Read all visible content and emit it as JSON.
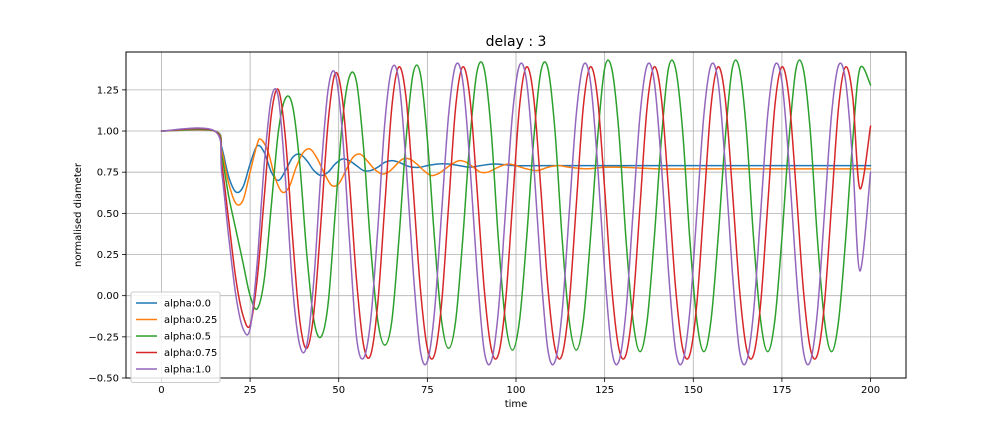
{
  "chart_data": {
    "type": "line",
    "title": "delay : 3",
    "xlabel": "time",
    "ylabel": "normalised diameter",
    "xlim": [
      -10,
      210
    ],
    "ylim": [
      -0.5,
      1.48
    ],
    "xticks": [
      0,
      25,
      50,
      75,
      100,
      125,
      150,
      175,
      200
    ],
    "xtick_labels": [
      "0",
      "25",
      "50",
      "75",
      "100",
      "125",
      "150",
      "175",
      "200"
    ],
    "yticks": [
      -0.5,
      -0.25,
      0.0,
      0.25,
      0.5,
      0.75,
      1.0,
      1.25
    ],
    "ytick_labels": [
      "−0.50",
      "−0.25",
      "0.00",
      "0.25",
      "0.50",
      "0.75",
      "1.00",
      "1.25"
    ],
    "grid": true,
    "legend_position": "lower-left",
    "series": [
      {
        "name": "alpha:0.0",
        "color": "#1f77b4",
        "x": [
          0,
          15,
          17,
          19,
          21,
          23,
          25,
          27,
          29,
          31,
          33,
          35,
          37,
          39,
          41,
          43,
          45,
          47,
          49,
          51,
          53,
          55,
          57,
          59,
          61,
          63,
          65,
          67,
          69,
          71,
          73,
          75,
          78,
          81,
          84,
          87,
          90,
          94,
          100,
          110,
          200
        ],
        "y": [
          1.0,
          1.0,
          0.9,
          0.72,
          0.63,
          0.66,
          0.8,
          0.91,
          0.87,
          0.75,
          0.7,
          0.76,
          0.84,
          0.86,
          0.82,
          0.76,
          0.73,
          0.75,
          0.8,
          0.83,
          0.82,
          0.79,
          0.76,
          0.76,
          0.78,
          0.81,
          0.82,
          0.81,
          0.79,
          0.78,
          0.78,
          0.79,
          0.8,
          0.8,
          0.79,
          0.78,
          0.79,
          0.8,
          0.79,
          0.79,
          0.79
        ]
      },
      {
        "name": "alpha:0.25",
        "color": "#ff7f0e",
        "x": [
          0,
          15,
          17,
          19,
          21,
          23,
          25,
          27,
          28,
          30,
          32,
          34,
          36,
          38,
          40,
          42,
          44,
          46,
          48,
          50,
          52,
          54,
          56,
          58,
          60,
          62,
          64,
          66,
          68,
          70,
          72,
          74,
          76,
          78,
          80,
          82,
          84,
          86,
          88,
          90,
          92,
          94,
          96,
          98,
          100,
          103,
          106,
          109,
          112,
          115,
          120,
          125,
          130,
          140,
          150,
          160,
          170,
          180,
          200
        ],
        "y": [
          1.0,
          1.0,
          0.88,
          0.68,
          0.56,
          0.58,
          0.75,
          0.92,
          0.95,
          0.88,
          0.72,
          0.63,
          0.66,
          0.78,
          0.87,
          0.89,
          0.83,
          0.74,
          0.67,
          0.68,
          0.76,
          0.84,
          0.86,
          0.82,
          0.77,
          0.74,
          0.75,
          0.79,
          0.83,
          0.83,
          0.8,
          0.76,
          0.73,
          0.74,
          0.77,
          0.8,
          0.82,
          0.81,
          0.78,
          0.75,
          0.75,
          0.77,
          0.79,
          0.8,
          0.79,
          0.77,
          0.76,
          0.78,
          0.79,
          0.78,
          0.77,
          0.78,
          0.78,
          0.77,
          0.77,
          0.77,
          0.77,
          0.77,
          0.77
        ]
      },
      {
        "name": "alpha:0.5",
        "color": "#2ca02c",
        "x": [
          0,
          15,
          17,
          19,
          21,
          23,
          25,
          27,
          29,
          31,
          33,
          35,
          37,
          39,
          41,
          43,
          45,
          47,
          49,
          51,
          53,
          55,
          57,
          59,
          61,
          63,
          65,
          67,
          69,
          71,
          73,
          75,
          77,
          79,
          81,
          83,
          85,
          87,
          89,
          91,
          93,
          95,
          97,
          99,
          101,
          103,
          105,
          107,
          109,
          111,
          113,
          115,
          117,
          119,
          121,
          123,
          125,
          127,
          129,
          131,
          133,
          135,
          137,
          139,
          141,
          143,
          145,
          147,
          149,
          151,
          153,
          155,
          157,
          159,
          161,
          163,
          165,
          167,
          169,
          171,
          173,
          175,
          177,
          179,
          181,
          183,
          185,
          187,
          189,
          191,
          193,
          195,
          197,
          200
        ],
        "y": [
          1.0,
          1.0,
          0.85,
          0.6,
          0.4,
          0.2,
          0.0,
          -0.08,
          0.1,
          0.55,
          1.0,
          1.2,
          1.15,
          0.8,
          0.25,
          -0.15,
          -0.25,
          -0.05,
          0.5,
          1.05,
          1.33,
          1.3,
          0.9,
          0.3,
          -0.15,
          -0.3,
          -0.15,
          0.35,
          0.95,
          1.35,
          1.35,
          0.95,
          0.35,
          -0.15,
          -0.32,
          -0.15,
          0.35,
          0.95,
          1.36,
          1.38,
          1.0,
          0.35,
          -0.15,
          -0.33,
          -0.15,
          0.35,
          0.95,
          1.36,
          1.38,
          1.0,
          0.35,
          -0.15,
          -0.33,
          -0.15,
          0.35,
          0.95,
          1.38,
          1.38,
          1.0,
          0.35,
          -0.15,
          -0.34,
          -0.15,
          0.35,
          0.95,
          1.38,
          1.38,
          1.0,
          0.35,
          -0.15,
          -0.34,
          -0.15,
          0.35,
          0.95,
          1.38,
          1.38,
          1.0,
          0.35,
          -0.15,
          -0.34,
          -0.15,
          0.35,
          0.95,
          1.38,
          1.38,
          1.0,
          0.35,
          -0.15,
          -0.34,
          -0.15,
          0.35,
          0.95,
          1.38,
          1.28
        ]
      },
      {
        "name": "alpha:0.75",
        "color": "#d62728",
        "x": [
          0,
          15,
          17,
          19,
          21,
          23,
          25,
          27,
          29,
          31,
          33,
          35,
          37,
          39,
          41,
          43,
          45,
          47,
          49,
          51,
          53,
          55,
          57,
          59,
          61,
          63,
          65,
          67,
          69,
          71,
          73,
          75,
          77,
          79,
          81,
          83,
          85,
          87,
          89,
          91,
          93,
          95,
          97,
          99,
          101,
          103,
          105,
          107,
          109,
          111,
          113,
          115,
          117,
          119,
          121,
          123,
          125,
          127,
          129,
          131,
          133,
          135,
          137,
          139,
          141,
          143,
          145,
          147,
          149,
          151,
          153,
          155,
          157,
          159,
          161,
          163,
          165,
          167,
          169,
          171,
          173,
          175,
          177,
          179,
          181,
          183,
          185,
          187,
          189,
          191,
          193,
          195,
          197,
          200
        ],
        "y": [
          1.0,
          1.0,
          0.8,
          0.45,
          0.1,
          -0.12,
          -0.18,
          0.1,
          0.6,
          1.1,
          1.25,
          0.95,
          0.35,
          -0.15,
          -0.32,
          -0.1,
          0.45,
          1.05,
          1.35,
          1.2,
          0.7,
          0.1,
          -0.3,
          -0.36,
          -0.05,
          0.55,
          1.15,
          1.39,
          1.2,
          0.65,
          0.05,
          -0.32,
          -0.36,
          -0.05,
          0.55,
          1.15,
          1.39,
          1.2,
          0.65,
          0.05,
          -0.32,
          -0.36,
          -0.05,
          0.55,
          1.15,
          1.39,
          1.2,
          0.65,
          0.05,
          -0.32,
          -0.36,
          -0.05,
          0.55,
          1.15,
          1.39,
          1.2,
          0.65,
          0.05,
          -0.32,
          -0.36,
          -0.05,
          0.55,
          1.15,
          1.39,
          1.2,
          0.65,
          0.05,
          -0.32,
          -0.36,
          -0.05,
          0.55,
          1.15,
          1.39,
          1.2,
          0.65,
          0.05,
          -0.32,
          -0.36,
          -0.05,
          0.55,
          1.15,
          1.39,
          1.2,
          0.65,
          0.05,
          -0.32,
          -0.36,
          -0.05,
          0.55,
          1.15,
          1.39,
          1.2,
          0.65,
          1.03
        ]
      },
      {
        "name": "alpha:1.0",
        "color": "#9467bd",
        "x": [
          0,
          15,
          17,
          19,
          21,
          23,
          25,
          27,
          29,
          31,
          33,
          35,
          37,
          39,
          41,
          43,
          45,
          47,
          49,
          51,
          53,
          55,
          57,
          59,
          61,
          63,
          65,
          67,
          69,
          71,
          73,
          75,
          77,
          79,
          81,
          83,
          85,
          87,
          89,
          91,
          93,
          95,
          97,
          99,
          101,
          103,
          105,
          107,
          109,
          111,
          113,
          115,
          117,
          119,
          121,
          123,
          125,
          127,
          129,
          131,
          133,
          135,
          137,
          139,
          141,
          143,
          145,
          147,
          149,
          151,
          153,
          155,
          157,
          159,
          161,
          163,
          165,
          167,
          169,
          171,
          173,
          175,
          177,
          179,
          181,
          183,
          185,
          187,
          189,
          191,
          193,
          195,
          197,
          200
        ],
        "y": [
          1.0,
          1.0,
          0.75,
          0.35,
          0.0,
          -0.2,
          -0.2,
          0.2,
          0.8,
          1.2,
          1.2,
          0.7,
          0.05,
          -0.3,
          -0.3,
          0.1,
          0.75,
          1.25,
          1.35,
          1.0,
          0.35,
          -0.25,
          -0.38,
          -0.15,
          0.4,
          1.05,
          1.38,
          1.3,
          0.8,
          0.15,
          -0.33,
          -0.4,
          -0.1,
          0.5,
          1.1,
          1.4,
          1.3,
          0.8,
          0.15,
          -0.33,
          -0.4,
          -0.1,
          0.5,
          1.1,
          1.4,
          1.3,
          0.8,
          0.15,
          -0.33,
          -0.4,
          -0.1,
          0.5,
          1.1,
          1.4,
          1.3,
          0.8,
          0.15,
          -0.33,
          -0.4,
          -0.1,
          0.5,
          1.1,
          1.4,
          1.3,
          0.8,
          0.15,
          -0.33,
          -0.4,
          -0.1,
          0.5,
          1.1,
          1.4,
          1.3,
          0.8,
          0.15,
          -0.33,
          -0.4,
          -0.1,
          0.5,
          1.1,
          1.4,
          1.3,
          0.8,
          0.15,
          -0.33,
          -0.4,
          -0.1,
          0.5,
          1.1,
          1.4,
          1.3,
          0.8,
          0.15,
          0.75
        ]
      }
    ]
  }
}
